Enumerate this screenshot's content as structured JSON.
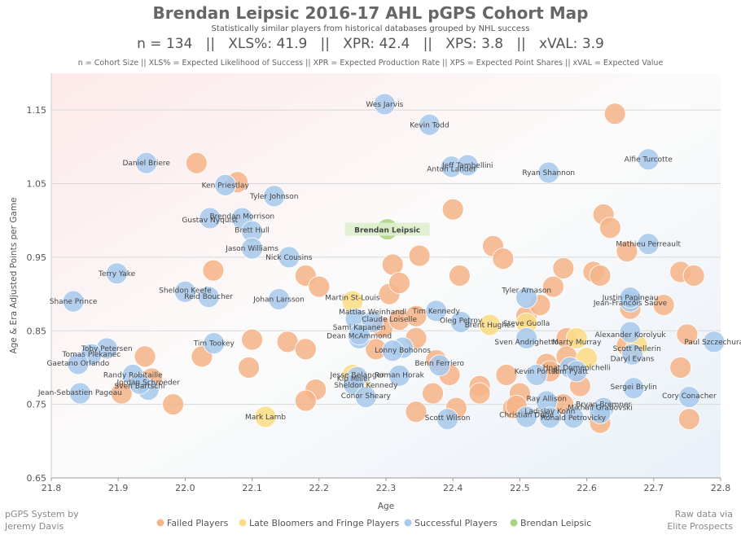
{
  "chart_data": {
    "type": "scatter",
    "title": "Brendan Leipsic 2016-17 AHL pGPS Cohort Map",
    "subtitle": "Statistically similar players from historical databases grouped by NHL success",
    "stats_line": "n = 134   ||   XLS%: 41.9   ||   XPR: 42.4   ||   XPS: 3.8   ||   xVAL: 3.9",
    "definitions": "n = Cohort Size || XLS% = Expected Likelihood of Success || XPR = Expected Production Rate || XPS = Expected Point Shares || xVAL = Expected Value",
    "xlabel": "Age",
    "ylabel": "Age & Era Adjusted Points per Game",
    "xlim": [
      21.8,
      22.8
    ],
    "ylim": [
      0.65,
      1.2
    ],
    "xticks": [
      "21.8",
      "21.9",
      "22.0",
      "22.1",
      "22.2",
      "22.3",
      "22.4",
      "22.5",
      "22.6",
      "22.7",
      "22.8"
    ],
    "yticks": [
      "0.65",
      "0.75",
      "0.85",
      "0.95",
      "1.05",
      "1.15"
    ],
    "colors": {
      "failed": "#f5b58a",
      "late": "#fbdc86",
      "successful": "#a9c9ec",
      "subject": "#aad483"
    },
    "legend": [
      {
        "key": "failed",
        "label": "Failed Players"
      },
      {
        "key": "late",
        "label": "Late Bloomers and Fringe Players"
      },
      {
        "key": "successful",
        "label": "Successful Players"
      },
      {
        "key": "subject",
        "label": "Brendan Leipsic"
      }
    ],
    "series": [
      {
        "name": "Failed Players",
        "key": "failed",
        "points": [
          [
            22.017,
            1.078
          ],
          [
            22.078,
            1.052
          ],
          [
            22.025,
            0.815
          ],
          [
            22.042,
            0.932
          ],
          [
            22.1,
            0.838
          ],
          [
            22.095,
            0.8
          ],
          [
            22.153,
            0.835
          ],
          [
            22.18,
            0.925
          ],
          [
            22.2,
            0.91
          ],
          [
            22.18,
            0.825
          ],
          [
            22.195,
            0.77
          ],
          [
            22.18,
            0.755
          ],
          [
            21.94,
            0.815
          ],
          [
            21.905,
            0.765
          ],
          [
            21.95,
            0.785
          ],
          [
            21.982,
            0.75
          ],
          [
            22.295,
            0.855
          ],
          [
            22.31,
            0.94
          ],
          [
            22.305,
            0.9
          ],
          [
            22.32,
            0.915
          ],
          [
            22.32,
            0.865
          ],
          [
            22.285,
            0.825
          ],
          [
            22.35,
            0.952
          ],
          [
            22.345,
            0.84
          ],
          [
            22.345,
            0.87
          ],
          [
            22.375,
            0.81
          ],
          [
            22.37,
            0.765
          ],
          [
            22.345,
            0.74
          ],
          [
            22.4,
            1.015
          ],
          [
            22.41,
            0.925
          ],
          [
            22.395,
            0.79
          ],
          [
            22.405,
            0.745
          ],
          [
            22.44,
            0.775
          ],
          [
            22.44,
            0.765
          ],
          [
            22.46,
            0.965
          ],
          [
            22.475,
            0.948
          ],
          [
            22.48,
            0.79
          ],
          [
            22.49,
            0.745
          ],
          [
            22.5,
            0.765
          ],
          [
            22.495,
            0.748
          ],
          [
            22.51,
            0.87
          ],
          [
            22.53,
            0.885
          ],
          [
            22.55,
            0.91
          ],
          [
            22.565,
            0.935
          ],
          [
            22.54,
            0.805
          ],
          [
            22.545,
            0.795
          ],
          [
            22.57,
            0.84
          ],
          [
            22.57,
            0.815
          ],
          [
            22.59,
            0.775
          ],
          [
            22.61,
            0.93
          ],
          [
            22.62,
            0.925
          ],
          [
            22.625,
            1.008
          ],
          [
            22.635,
            0.99
          ],
          [
            22.642,
            1.145
          ],
          [
            22.66,
            0.958
          ],
          [
            22.665,
            0.88
          ],
          [
            22.715,
            0.885
          ],
          [
            22.74,
            0.93
          ],
          [
            22.76,
            0.925
          ],
          [
            22.75,
            0.845
          ],
          [
            22.74,
            0.8
          ],
          [
            22.753,
            0.73
          ],
          [
            22.66,
            0.83
          ],
          [
            22.62,
            0.725
          ],
          [
            22.565,
            0.75
          ]
        ]
      },
      {
        "name": "Late Bloomers and Fringe Players",
        "key": "late",
        "points": [
          [
            22.25,
            0.89
          ],
          [
            22.12,
            0.733
          ],
          [
            22.25,
            0.79
          ],
          [
            22.26,
            0.775
          ],
          [
            22.455,
            0.858
          ],
          [
            22.51,
            0.86
          ],
          [
            22.585,
            0.84
          ],
          [
            22.675,
            0.83
          ],
          [
            22.6,
            0.813
          ]
        ]
      },
      {
        "name": "Successful Players",
        "key": "successful",
        "points": [
          [
            22.298,
            1.158
          ],
          [
            22.365,
            1.13
          ],
          [
            21.942,
            1.078
          ],
          [
            22.06,
            1.048
          ],
          [
            22.133,
            1.033
          ],
          [
            22.085,
            1.003
          ],
          [
            22.037,
            1.003
          ],
          [
            22.1,
            0.985
          ],
          [
            22.1,
            0.962
          ],
          [
            22.155,
            0.95
          ],
          [
            22.398,
            1.073
          ],
          [
            22.422,
            1.075
          ],
          [
            22.543,
            1.065
          ],
          [
            22.692,
            1.083
          ],
          [
            22.692,
            0.968
          ],
          [
            21.898,
            0.928
          ],
          [
            22.0,
            0.903
          ],
          [
            22.035,
            0.896
          ],
          [
            22.14,
            0.893
          ],
          [
            21.833,
            0.89
          ],
          [
            22.375,
            0.877
          ],
          [
            22.412,
            0.862
          ],
          [
            22.255,
            0.866
          ],
          [
            22.28,
            0.862
          ],
          [
            22.26,
            0.84
          ],
          [
            22.26,
            0.845
          ],
          [
            22.325,
            0.827
          ],
          [
            22.31,
            0.823
          ],
          [
            22.38,
            0.803
          ],
          [
            22.257,
            0.787
          ],
          [
            22.252,
            0.777
          ],
          [
            22.32,
            0.789
          ],
          [
            22.27,
            0.76
          ],
          [
            22.392,
            0.73
          ],
          [
            21.883,
            0.826
          ],
          [
            21.86,
            0.818
          ],
          [
            21.84,
            0.805
          ],
          [
            21.922,
            0.79
          ],
          [
            21.945,
            0.77
          ],
          [
            21.932,
            0.778
          ],
          [
            21.843,
            0.765
          ],
          [
            22.043,
            0.833
          ],
          [
            22.51,
            0.895
          ],
          [
            22.51,
            0.84
          ],
          [
            22.525,
            0.79
          ],
          [
            22.54,
            0.754
          ],
          [
            22.545,
            0.732
          ],
          [
            22.575,
            0.8
          ],
          [
            22.585,
            0.795
          ],
          [
            22.58,
            0.732
          ],
          [
            22.625,
            0.745
          ],
          [
            22.62,
            0.738
          ],
          [
            22.665,
            0.89
          ],
          [
            22.665,
            0.895
          ],
          [
            22.665,
            0.848
          ],
          [
            22.668,
            0.818
          ],
          [
            22.67,
            0.772
          ],
          [
            22.753,
            0.76
          ],
          [
            22.79,
            0.835
          ],
          [
            22.51,
            0.733
          ]
        ]
      },
      {
        "name": "Brendan Leipsic",
        "key": "subject",
        "points": [
          [
            22.302,
            0.988
          ]
        ]
      }
    ],
    "labels": [
      {
        "text": "Wes Jarvis",
        "x": 22.298,
        "y": 1.158
      },
      {
        "text": "Kevin Todd",
        "x": 22.365,
        "y": 1.13
      },
      {
        "text": "Daniel Briere",
        "x": 21.942,
        "y": 1.078
      },
      {
        "text": "Jeff Tambellini",
        "x": 22.422,
        "y": 1.075
      },
      {
        "text": "Anton Lander",
        "x": 22.398,
        "y": 1.07
      },
      {
        "text": "Alfie Turcotte",
        "x": 22.692,
        "y": 1.083
      },
      {
        "text": "Ryan Shannon",
        "x": 22.543,
        "y": 1.065
      },
      {
        "text": "Ken Priestlay",
        "x": 22.06,
        "y": 1.048
      },
      {
        "text": "Tyler Johnson",
        "x": 22.133,
        "y": 1.033
      },
      {
        "text": "Brendan Morrison",
        "x": 22.085,
        "y": 1.006
      },
      {
        "text": "Gustav Nyquist",
        "x": 22.037,
        "y": 1.001
      },
      {
        "text": "Brett Hull",
        "x": 22.1,
        "y": 0.987
      },
      {
        "text": "Mathieu Perreault",
        "x": 22.692,
        "y": 0.968
      },
      {
        "text": "Jason Williams",
        "x": 22.1,
        "y": 0.962
      },
      {
        "text": "Nick Cousins",
        "x": 22.155,
        "y": 0.95
      },
      {
        "text": "Terry Yake",
        "x": 21.898,
        "y": 0.928
      },
      {
        "text": "Sheldon Keefe",
        "x": 22.0,
        "y": 0.905
      },
      {
        "text": "Reid Boucher",
        "x": 22.035,
        "y": 0.897
      },
      {
        "text": "Tyler Arnason",
        "x": 22.51,
        "y": 0.905
      },
      {
        "text": "Justin Papineau",
        "x": 22.665,
        "y": 0.895
      },
      {
        "text": "Johan Larsson",
        "x": 22.14,
        "y": 0.893
      },
      {
        "text": "Martin St-Louis",
        "x": 22.25,
        "y": 0.895
      },
      {
        "text": "Shane Prince",
        "x": 21.833,
        "y": 0.89
      },
      {
        "text": "Jean-Francois Sauve",
        "x": 22.665,
        "y": 0.888
      },
      {
        "text": "Mattias Weinhandl",
        "x": 22.28,
        "y": 0.876
      },
      {
        "text": "Tim Kennedy",
        "x": 22.375,
        "y": 0.877
      },
      {
        "text": "Claude Loiselle",
        "x": 22.305,
        "y": 0.866
      },
      {
        "text": "Oleg Petrov",
        "x": 22.412,
        "y": 0.864
      },
      {
        "text": "Steve Guolla",
        "x": 22.51,
        "y": 0.86
      },
      {
        "text": "Brent Hughes",
        "x": 22.455,
        "y": 0.858
      },
      {
        "text": "Sami Kapanen",
        "x": 22.26,
        "y": 0.855
      },
      {
        "text": "Alexander Korolyuk",
        "x": 22.665,
        "y": 0.845
      },
      {
        "text": "Dean McAmmond",
        "x": 22.26,
        "y": 0.843
      },
      {
        "text": "Paul Szczechura",
        "x": 22.79,
        "y": 0.835
      },
      {
        "text": "Sven Andrighetto",
        "x": 22.51,
        "y": 0.835
      },
      {
        "text": "Marty Murray",
        "x": 22.585,
        "y": 0.835
      },
      {
        "text": "Tim Tookey",
        "x": 22.043,
        "y": 0.833
      },
      {
        "text": "Toby Petersen",
        "x": 21.883,
        "y": 0.826
      },
      {
        "text": "Scott Pellerin",
        "x": 22.675,
        "y": 0.826
      },
      {
        "text": "Lonny Bohonos",
        "x": 22.325,
        "y": 0.824
      },
      {
        "text": "Tomas Plekanec",
        "x": 21.86,
        "y": 0.818
      },
      {
        "text": "Daryl Evans",
        "x": 22.668,
        "y": 0.812
      },
      {
        "text": "Gaetano Orlando",
        "x": 21.84,
        "y": 0.806
      },
      {
        "text": "Benn Ferriero",
        "x": 22.38,
        "y": 0.806
      },
      {
        "text": "Hnat Domenichelli",
        "x": 22.585,
        "y": 0.8
      },
      {
        "text": "Kevin Porter",
        "x": 22.525,
        "y": 0.795
      },
      {
        "text": "Tom Pyatt",
        "x": 22.575,
        "y": 0.795
      },
      {
        "text": "Randy Robitaille",
        "x": 21.922,
        "y": 0.79
      },
      {
        "text": "Jesse Belanger",
        "x": 22.257,
        "y": 0.79
      },
      {
        "text": "Roman Horak",
        "x": 22.32,
        "y": 0.79
      },
      {
        "text": "Kip Miller",
        "x": 22.252,
        "y": 0.785
      },
      {
        "text": "Jordan Schroeder",
        "x": 21.945,
        "y": 0.78
      },
      {
        "text": "Sheldon Kennedy",
        "x": 22.27,
        "y": 0.776
      },
      {
        "text": "Sven Bartschi",
        "x": 21.932,
        "y": 0.775
      },
      {
        "text": "Sergei Brylin",
        "x": 22.67,
        "y": 0.774
      },
      {
        "text": "Jean-Sebastien Pageau",
        "x": 21.843,
        "y": 0.766
      },
      {
        "text": "Conor Sheary",
        "x": 22.27,
        "y": 0.762
      },
      {
        "text": "Cory Conacher",
        "x": 22.753,
        "y": 0.762
      },
      {
        "text": "Ray Allison",
        "x": 22.54,
        "y": 0.758
      },
      {
        "text": "Bryan Bremner",
        "x": 22.625,
        "y": 0.75
      },
      {
        "text": "Mikhail Grabovski",
        "x": 22.62,
        "y": 0.746
      },
      {
        "text": "Ladislav Kohn",
        "x": 22.545,
        "y": 0.741
      },
      {
        "text": "Christian Dube",
        "x": 22.51,
        "y": 0.736
      },
      {
        "text": "Ronald Petrovicky",
        "x": 22.58,
        "y": 0.732
      },
      {
        "text": "Mark Lamb",
        "x": 22.12,
        "y": 0.733
      },
      {
        "text": "Scott Wilson",
        "x": 22.392,
        "y": 0.732
      },
      {
        "text": "Brendan Leipsic",
        "x": 22.302,
        "y": 0.988
      }
    ]
  },
  "footer": {
    "left_line1": "pGPS System by",
    "left_line2": "Jeremy Davis",
    "right_line1": "Raw data via",
    "right_line2": "Elite Prospects"
  }
}
